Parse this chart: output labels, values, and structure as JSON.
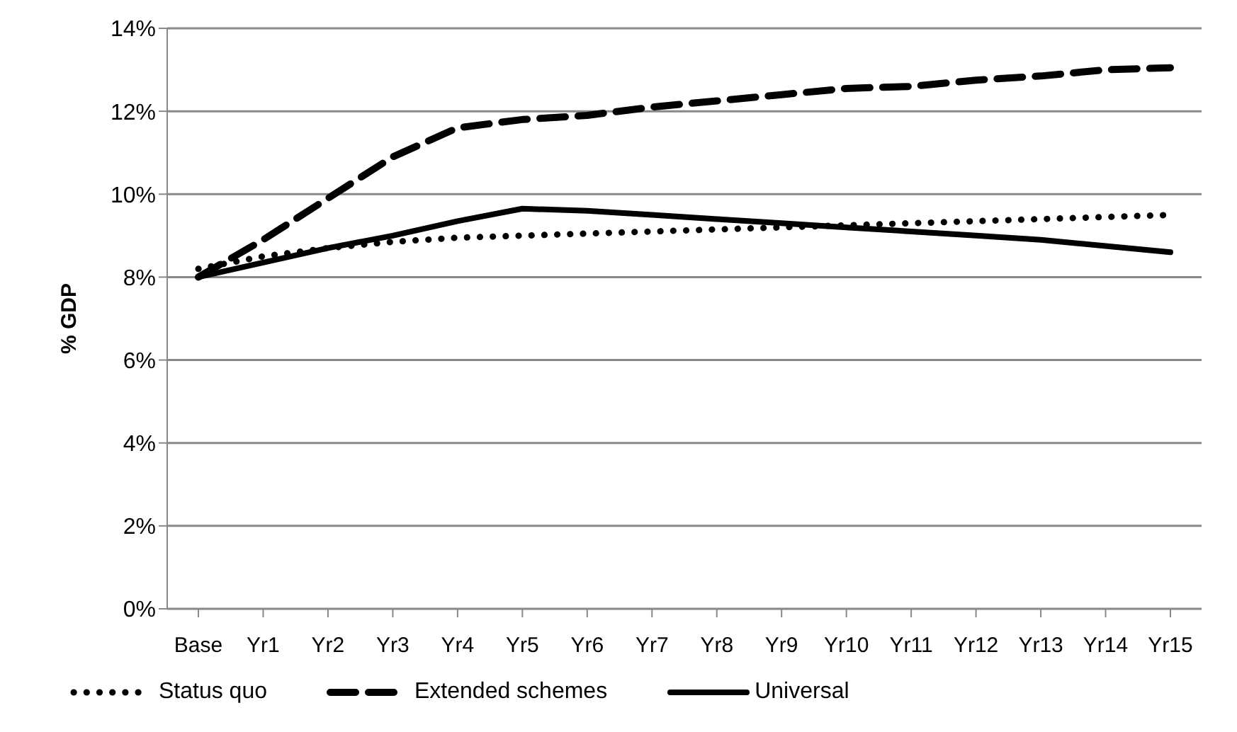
{
  "chart_data": {
    "type": "line",
    "ylabel": "% GDP",
    "categories": [
      "Base",
      "Yr1",
      "Yr2",
      "Yr3",
      "Yr4",
      "Yr5",
      "Yr6",
      "Yr7",
      "Yr8",
      "Yr9",
      "Yr10",
      "Yr11",
      "Yr12",
      "Yr13",
      "Yr14",
      "Yr15"
    ],
    "series": [
      {
        "name": "Status quo",
        "color": "#000000",
        "line_style": "dotted",
        "values": [
          8.2,
          8.5,
          8.7,
          8.85,
          8.95,
          9.0,
          9.05,
          9.1,
          9.15,
          9.2,
          9.25,
          9.3,
          9.35,
          9.4,
          9.45,
          9.5
        ]
      },
      {
        "name": "Extended schemes",
        "color": "#000000",
        "line_style": "dashed",
        "values": [
          8.0,
          8.9,
          9.9,
          10.9,
          11.6,
          11.8,
          11.9,
          12.1,
          12.25,
          12.4,
          12.55,
          12.6,
          12.75,
          12.85,
          13.0,
          13.05
        ]
      },
      {
        "name": "Universal",
        "color": "#000000",
        "line_style": "solid",
        "values": [
          8.0,
          8.35,
          8.7,
          9.0,
          9.35,
          9.65,
          9.6,
          9.5,
          9.4,
          9.3,
          9.2,
          9.1,
          9.0,
          8.9,
          8.75,
          8.6
        ]
      }
    ],
    "ylim": [
      0,
      14
    ],
    "yticks": [
      {
        "value": 0,
        "label": "0%"
      },
      {
        "value": 2,
        "label": "2%"
      },
      {
        "value": 4,
        "label": "4%"
      },
      {
        "value": 6,
        "label": "6%"
      },
      {
        "value": 8,
        "label": "8%"
      },
      {
        "value": 10,
        "label": "10%"
      },
      {
        "value": 12,
        "label": "12%"
      },
      {
        "value": 14,
        "label": "14%"
      }
    ],
    "grid": "y",
    "legend": "bottom",
    "marker": "none"
  }
}
